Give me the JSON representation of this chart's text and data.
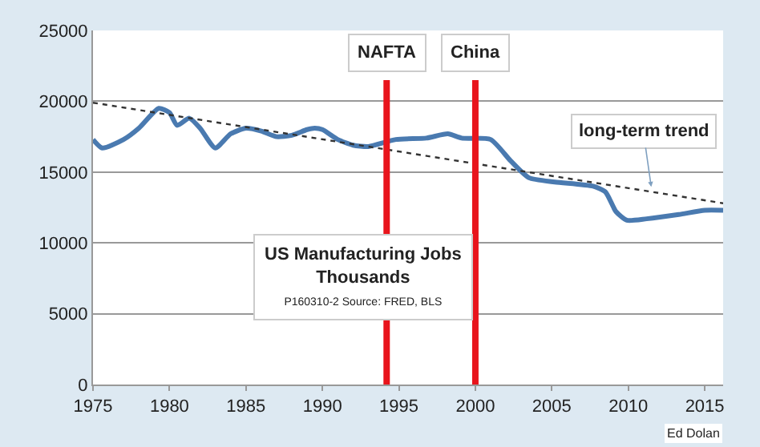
{
  "chart_data": {
    "type": "line",
    "title": "US Manufacturing Jobs",
    "subtitle": "Thousands",
    "xlim": [
      1975,
      2016.2
    ],
    "xticks": [
      1975,
      1980,
      1985,
      1990,
      1995,
      2000,
      2005,
      2010,
      2015
    ],
    "ylim": [
      0,
      25000
    ],
    "yticks": [
      0,
      5000,
      10000,
      15000,
      20000,
      25000
    ],
    "grid": "y",
    "series": [
      {
        "color": "#4a7ab0",
        "x": [
          1975,
          1975.6,
          1977,
          1978,
          1979.3,
          1980,
          1980.5,
          1981.3,
          1982,
          1983,
          1984,
          1985,
          1986,
          1987,
          1988,
          1989,
          1989.5,
          1990,
          1991,
          1992,
          1993,
          1994.8,
          1996.8,
          1998.2,
          1999.1,
          2001.0,
          2002.3,
          2003.5,
          2005.2,
          2007.7,
          2008.5,
          2009.2,
          2009.9,
          2011.2,
          2013.3,
          2015,
          2016.2
        ],
        "values": [
          17300,
          16700,
          17300,
          18100,
          19500,
          19200,
          18300,
          18800,
          18100,
          16700,
          17700,
          18100,
          17900,
          17500,
          17600,
          18000,
          18100,
          18000,
          17300,
          16900,
          16800,
          17300,
          17400,
          17700,
          17400,
          17300,
          15800,
          14600,
          14300,
          14000,
          13600,
          12200,
          11600,
          11700,
          12000,
          12300,
          12300
        ]
      },
      {
        "color": "#333333",
        "line_style": "dotted",
        "x": [
          1975,
          2016.2
        ],
        "values": [
          19900,
          12800
        ]
      }
    ],
    "ref_lines": [
      {
        "axis": "x",
        "value": 1994.2,
        "label": "NAFTA",
        "color": "#e8141c"
      },
      {
        "axis": "x",
        "value": 2000,
        "label": "China",
        "color": "#e8141c"
      }
    ],
    "annotations": [
      {
        "text": "long-term trend",
        "x": 2011.5,
        "y": 13950
      },
      "P160310-2 Source: FRED, BLS",
      "Ed Dolan"
    ]
  }
}
